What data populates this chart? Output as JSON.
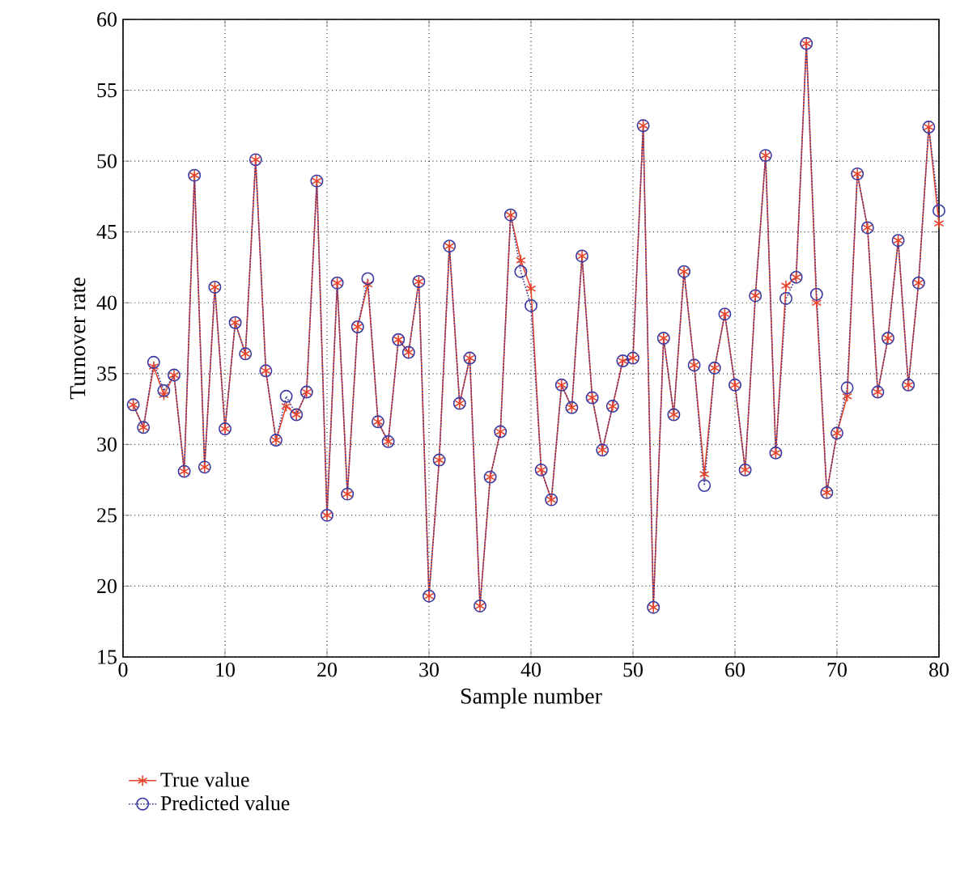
{
  "chart_data": {
    "type": "line",
    "xlabel": "Sample number",
    "ylabel": "Turnover rate",
    "x": [
      1,
      2,
      3,
      4,
      5,
      6,
      7,
      8,
      9,
      10,
      11,
      12,
      13,
      14,
      15,
      16,
      17,
      18,
      19,
      20,
      21,
      22,
      23,
      24,
      25,
      26,
      27,
      28,
      29,
      30,
      31,
      32,
      33,
      34,
      35,
      36,
      37,
      38,
      39,
      40,
      41,
      42,
      43,
      44,
      45,
      46,
      47,
      48,
      49,
      50,
      51,
      52,
      53,
      54,
      55,
      56,
      57,
      58,
      59,
      60,
      61,
      62,
      63,
      64,
      65,
      66,
      67,
      68,
      69,
      70,
      71,
      72,
      73,
      74,
      75,
      76,
      77,
      78,
      79,
      80
    ],
    "series": [
      {
        "name": "True value",
        "color": "#e8442a",
        "marker": "cross",
        "line_style": "solid",
        "values": [
          32.8,
          31.2,
          35.5,
          33.5,
          34.9,
          28.1,
          49.0,
          28.4,
          41.1,
          31.1,
          38.6,
          36.4,
          50.1,
          35.2,
          30.3,
          32.7,
          32.1,
          33.7,
          48.6,
          25.0,
          41.4,
          26.5,
          38.3,
          41.3,
          31.6,
          30.2,
          37.4,
          36.5,
          41.5,
          19.3,
          28.9,
          44.0,
          32.9,
          36.1,
          18.6,
          27.7,
          30.9,
          46.2,
          43.0,
          41.0,
          28.2,
          26.1,
          34.2,
          32.6,
          43.3,
          33.3,
          29.6,
          32.7,
          35.9,
          36.1,
          52.5,
          18.5,
          37.5,
          32.1,
          42.2,
          35.6,
          27.9,
          35.4,
          39.2,
          34.2,
          28.2,
          40.5,
          50.4,
          29.4,
          41.2,
          41.8,
          58.3,
          40.0,
          26.6,
          30.8,
          33.4,
          49.1,
          45.3,
          33.7,
          37.5,
          44.4,
          34.2,
          41.4,
          52.4,
          45.6
        ]
      },
      {
        "name": "Predicted value",
        "color": "#3a3aa0",
        "marker": "circle",
        "line_style": "dotted",
        "values": [
          32.8,
          31.2,
          35.8,
          33.8,
          34.9,
          28.1,
          49.0,
          28.4,
          41.1,
          31.1,
          38.6,
          36.4,
          50.1,
          35.2,
          30.3,
          33.4,
          32.1,
          33.7,
          48.6,
          25.0,
          41.4,
          26.5,
          38.3,
          41.7,
          31.6,
          30.2,
          37.4,
          36.5,
          41.5,
          19.3,
          28.9,
          44.0,
          32.9,
          36.1,
          18.6,
          27.7,
          30.9,
          46.2,
          42.2,
          39.8,
          28.2,
          26.1,
          34.2,
          32.6,
          43.3,
          33.3,
          29.6,
          32.7,
          35.9,
          36.1,
          52.5,
          18.5,
          37.5,
          32.1,
          42.2,
          35.6,
          27.1,
          35.4,
          39.2,
          34.2,
          28.2,
          40.5,
          50.4,
          29.4,
          40.3,
          41.8,
          58.3,
          40.6,
          26.6,
          30.8,
          34.0,
          49.1,
          45.3,
          33.7,
          37.5,
          44.4,
          34.2,
          41.4,
          52.4,
          46.5
        ]
      }
    ],
    "xlim": [
      0,
      80
    ],
    "xticks": [
      0,
      10,
      20,
      30,
      40,
      50,
      60,
      70,
      80
    ],
    "ylim": [
      15,
      60
    ],
    "yticks": [
      15,
      20,
      25,
      30,
      35,
      40,
      45,
      50,
      55,
      60
    ],
    "grid": true,
    "legend": "bottom"
  }
}
